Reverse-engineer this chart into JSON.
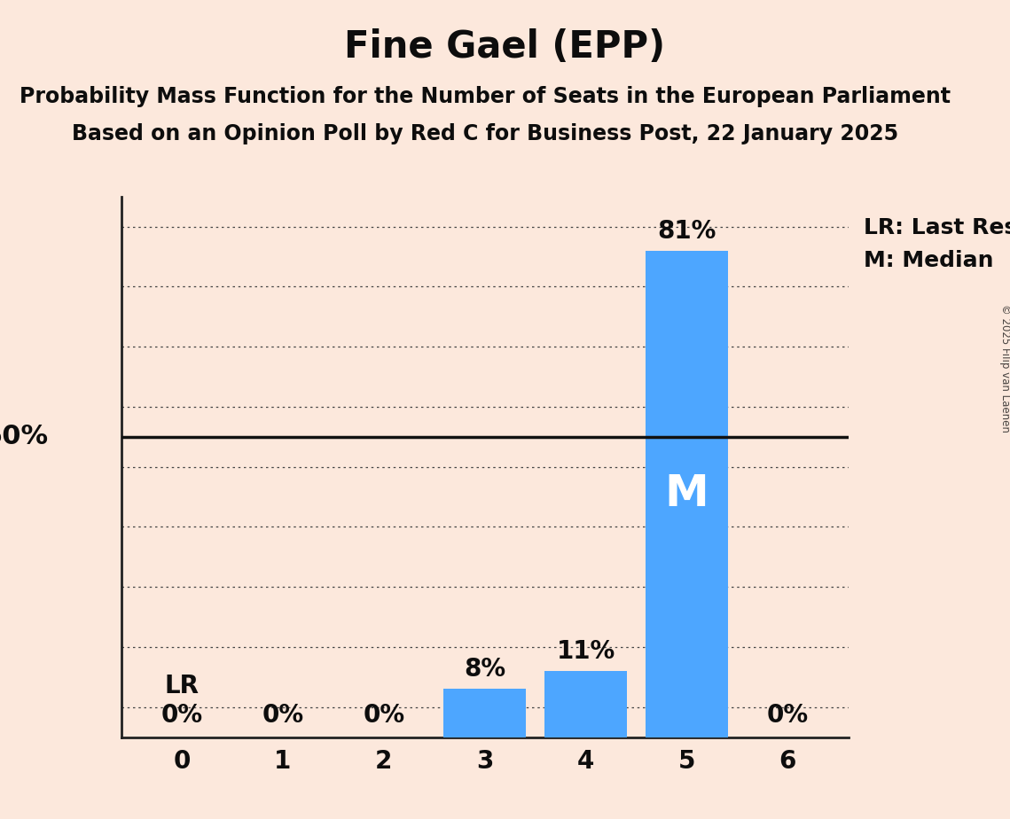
{
  "title": "Fine Gael (EPP)",
  "subtitle1": "Probability Mass Function for the Number of Seats in the European Parliament",
  "subtitle2": "Based on an Opinion Poll by Red C for Business Post, 22 January 2025",
  "copyright": "© 2025 Filip van Laenen",
  "categories": [
    0,
    1,
    2,
    3,
    4,
    5,
    6
  ],
  "values": [
    0,
    0,
    0,
    8,
    11,
    81,
    0
  ],
  "bar_color": "#4da6ff",
  "background_color": "#fce8dc",
  "fifty_line_color": "#111111",
  "grid_color": "#444444",
  "text_color": "#0d0d0d",
  "median_seat": 5,
  "last_result_seat": 0,
  "ylim_max": 90,
  "grid_levels": [
    5,
    15,
    25,
    35,
    45,
    55,
    65,
    75,
    85
  ],
  "legend_lr": "LR: Last Result",
  "legend_m": "M: Median",
  "title_fontsize": 30,
  "subtitle_fontsize": 17,
  "label_fontsize": 20,
  "tick_fontsize": 20,
  "legend_fontsize": 18,
  "fifty_label_fontsize": 22,
  "m_fontsize": 36,
  "lr_fontsize": 20
}
